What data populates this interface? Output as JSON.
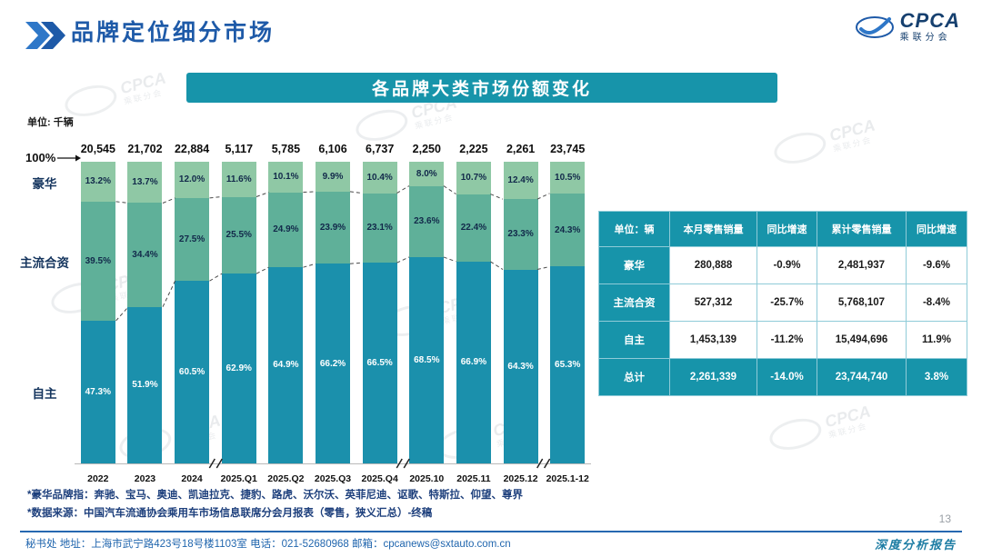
{
  "header": {
    "title": "品牌定位细分市场",
    "logo": {
      "brand": "CPCA",
      "subtitle": "乘联分会"
    }
  },
  "banner": {
    "title": "各品牌大类市场份额变化"
  },
  "chart": {
    "unit_label": "单位: 千辆",
    "axis_top_label": "100%"
  },
  "chart_data": {
    "type": "bar",
    "stacked": true,
    "percent": true,
    "title": "各品牌大类市场份额变化",
    "grid": false,
    "legend_position": "left-axis-labels",
    "ylim": [
      0,
      100
    ],
    "categories": [
      "2022",
      "2023",
      "2024",
      "2025.Q1",
      "2025.Q2",
      "2025.Q3",
      "2025.Q4",
      "2025.10",
      "2025.11",
      "2025.12",
      "2025.1-12"
    ],
    "totals": [
      "20,545",
      "21,702",
      "22,884",
      "5,117",
      "5,785",
      "6,106",
      "6,737",
      "2,250",
      "2,225",
      "2,261",
      "23,745"
    ],
    "series": [
      {
        "name": "豪华",
        "color": "#8FC8A5",
        "values": [
          13.2,
          13.7,
          12.0,
          11.6,
          10.1,
          9.9,
          10.4,
          8.0,
          10.7,
          12.4,
          10.5
        ]
      },
      {
        "name": "主流合资",
        "color": "#5FB099",
        "values": [
          39.5,
          34.4,
          27.5,
          25.5,
          24.9,
          23.9,
          23.1,
          23.6,
          22.4,
          23.3,
          24.3
        ]
      },
      {
        "name": "自主",
        "color": "#1B90AC",
        "values": [
          47.3,
          51.9,
          60.5,
          62.9,
          64.9,
          66.2,
          66.5,
          68.5,
          66.9,
          64.3,
          65.3
        ]
      }
    ],
    "break_after_indices": [
      2,
      6,
      9
    ]
  },
  "table": {
    "headers": [
      "单位：辆",
      "本月零售销量",
      "同比增速",
      "累计零售销量",
      "同比增速"
    ],
    "rows": [
      {
        "label": "豪华",
        "values": [
          "280,888",
          "-0.9%",
          "2,481,937",
          "-9.6%"
        ],
        "highlight": false
      },
      {
        "label": "主流合资",
        "values": [
          "527,312",
          "-25.7%",
          "5,768,107",
          "-8.4%"
        ],
        "highlight": false
      },
      {
        "label": "自主",
        "values": [
          "1,453,139",
          "-11.2%",
          "15,494,696",
          "11.9%"
        ],
        "highlight": false
      },
      {
        "label": "总计",
        "values": [
          "2,261,339",
          "-14.0%",
          "23,744,740",
          "3.8%"
        ],
        "highlight": true
      }
    ]
  },
  "footnotes": [
    "*豪华品牌指：奔驰、宝马、奥迪、凯迪拉克、捷豹、路虎、沃尔沃、英菲尼迪、讴歌、特斯拉、仰望、尊界",
    "*数据来源：中国汽车流通协会乘用车市场信息联席分会月报表（零售，狭义汇总）-终稿"
  ],
  "footer": {
    "contact": "秘书处  地址：上海市武宁路423号18号楼1103室  电话：021-52680968  邮箱：cpcanews@sxtauto.com.cn",
    "report_label": "深度分析报告",
    "page_number": "13"
  },
  "colors": {
    "accent_teal": "#1794AA",
    "primary_blue": "#1E5AA8"
  }
}
